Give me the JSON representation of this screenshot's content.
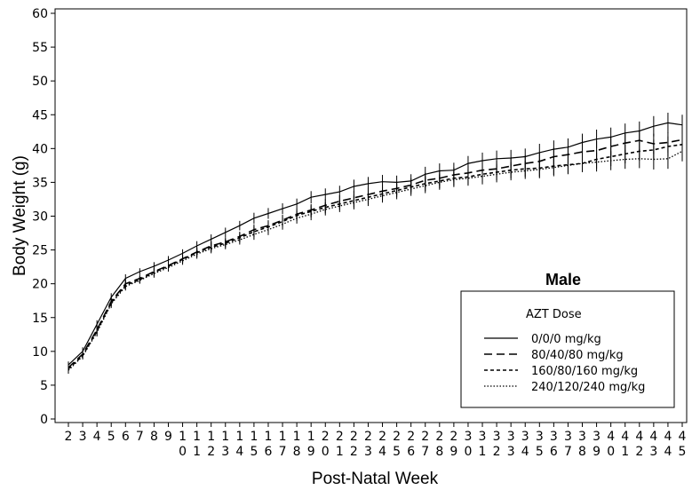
{
  "chart_data": {
    "type": "line",
    "xlabel": "Post-Natal Week",
    "ylabel": "Body Weight (g)",
    "xlim": [
      2,
      45
    ],
    "ylim": [
      0,
      60
    ],
    "yticks": [
      0,
      5,
      10,
      15,
      20,
      25,
      30,
      35,
      40,
      45,
      50,
      55,
      60
    ],
    "x": [
      2,
      3,
      4,
      5,
      6,
      7,
      8,
      9,
      10,
      11,
      12,
      13,
      14,
      15,
      16,
      17,
      18,
      19,
      20,
      21,
      22,
      23,
      24,
      25,
      26,
      27,
      28,
      29,
      30,
      31,
      32,
      33,
      34,
      35,
      36,
      37,
      38,
      39,
      40,
      41,
      42,
      43,
      44,
      45
    ],
    "x_tick_labels": [
      [
        "2"
      ],
      [
        "3"
      ],
      [
        "4"
      ],
      [
        "5"
      ],
      [
        "6"
      ],
      [
        "7"
      ],
      [
        "8"
      ],
      [
        "9"
      ],
      [
        "1",
        "0"
      ],
      [
        "1",
        "1"
      ],
      [
        "1",
        "2"
      ],
      [
        "1",
        "3"
      ],
      [
        "1",
        "4"
      ],
      [
        "1",
        "5"
      ],
      [
        "1",
        "6"
      ],
      [
        "1",
        "7"
      ],
      [
        "1",
        "8"
      ],
      [
        "1",
        "9"
      ],
      [
        "2",
        "0"
      ],
      [
        "2",
        "1"
      ],
      [
        "2",
        "2"
      ],
      [
        "2",
        "3"
      ],
      [
        "2",
        "4"
      ],
      [
        "2",
        "5"
      ],
      [
        "2",
        "6"
      ],
      [
        "2",
        "7"
      ],
      [
        "2",
        "8"
      ],
      [
        "2",
        "9"
      ],
      [
        "3",
        "0"
      ],
      [
        "3",
        "1"
      ],
      [
        "3",
        "2"
      ],
      [
        "3",
        "3"
      ],
      [
        "3",
        "4"
      ],
      [
        "3",
        "5"
      ],
      [
        "3",
        "6"
      ],
      [
        "3",
        "7"
      ],
      [
        "3",
        "8"
      ],
      [
        "3",
        "9"
      ],
      [
        "4",
        "0"
      ],
      [
        "4",
        "1"
      ],
      [
        "4",
        "2"
      ],
      [
        "4",
        "3"
      ],
      [
        "4",
        "4"
      ],
      [
        "4",
        "5"
      ]
    ],
    "series": [
      {
        "name": "0/0/0 mg/kg",
        "dash": "solid",
        "values": [
          8.0,
          10.0,
          14.0,
          18.0,
          20.8,
          21.8,
          22.6,
          23.5,
          24.5,
          25.6,
          26.6,
          27.6,
          28.6,
          29.7,
          30.4,
          31.1,
          31.8,
          32.8,
          33.2,
          33.6,
          34.4,
          34.8,
          35.1,
          35.0,
          35.2,
          36.2,
          36.7,
          36.8,
          37.8,
          38.2,
          38.5,
          38.6,
          38.8,
          39.4,
          39.9,
          40.2,
          40.9,
          41.4,
          41.7,
          42.3,
          42.6,
          43.3,
          43.8,
          43.5
        ],
        "errors": [
          0.5,
          0.6,
          0.6,
          0.6,
          0.6,
          0.5,
          0.6,
          0.6,
          0.6,
          0.7,
          0.7,
          0.7,
          0.7,
          0.8,
          0.8,
          0.8,
          0.8,
          0.9,
          0.9,
          0.9,
          1.0,
          1.0,
          1.0,
          1.0,
          1.0,
          1.1,
          1.1,
          1.1,
          1.1,
          1.2,
          1.2,
          1.2,
          1.2,
          1.3,
          1.3,
          1.3,
          1.3,
          1.4,
          1.4,
          1.4,
          1.4,
          1.5,
          1.5,
          1.5
        ]
      },
      {
        "name": "80/40/80 mg/kg",
        "dash": "long",
        "values": [
          7.6,
          9.6,
          13.2,
          17.4,
          20.0,
          20.8,
          21.8,
          22.7,
          23.7,
          24.7,
          25.6,
          26.2,
          27.0,
          28.0,
          28.6,
          29.4,
          30.3,
          30.9,
          31.6,
          32.2,
          32.7,
          33.2,
          33.7,
          34.1,
          34.6,
          35.3,
          35.6,
          36.1,
          36.4,
          36.8,
          37.0,
          37.4,
          37.8,
          38.1,
          38.8,
          39.1,
          39.5,
          39.7,
          40.3,
          40.8,
          41.2,
          40.7,
          40.9,
          41.3
        ],
        "errors": [
          0.5,
          0.5,
          0.6,
          0.6,
          0.6,
          0.5,
          0.6,
          0.6,
          0.6,
          0.7,
          0.7,
          0.7,
          0.7,
          0.8,
          0.8,
          0.8,
          0.8,
          0.9,
          0.9,
          0.9,
          1.0,
          1.0,
          1.0,
          1.0,
          1.0,
          1.1,
          1.1,
          1.1,
          1.1,
          1.2,
          1.2,
          1.2,
          1.2,
          1.3,
          1.3,
          1.3,
          1.3,
          1.4,
          1.4,
          1.4,
          1.4,
          1.5,
          1.5,
          1.5
        ]
      },
      {
        "name": "160/80/160 mg/kg",
        "dash": "short",
        "values": [
          7.4,
          9.4,
          13.0,
          17.2,
          19.8,
          20.6,
          21.7,
          22.6,
          23.6,
          24.6,
          25.4,
          26.0,
          26.8,
          27.7,
          28.4,
          29.2,
          30.1,
          30.7,
          31.3,
          31.8,
          32.3,
          32.8,
          33.3,
          33.8,
          34.3,
          34.8,
          35.2,
          35.6,
          35.8,
          36.2,
          36.5,
          36.8,
          37.0,
          37.1,
          37.4,
          37.6,
          37.8,
          38.4,
          38.8,
          39.2,
          39.6,
          39.8,
          40.3,
          40.6
        ],
        "errors": [
          0.5,
          0.5,
          0.6,
          0.6,
          0.6,
          0.5,
          0.6,
          0.6,
          0.6,
          0.7,
          0.7,
          0.7,
          0.7,
          0.8,
          0.8,
          0.8,
          0.8,
          0.9,
          0.9,
          0.9,
          1.0,
          1.0,
          1.0,
          1.0,
          1.0,
          1.1,
          1.1,
          1.1,
          1.1,
          1.2,
          1.2,
          1.2,
          1.2,
          1.3,
          1.3,
          1.3,
          1.3,
          1.4,
          1.4,
          1.4,
          1.4,
          1.5,
          1.5,
          1.5
        ]
      },
      {
        "name": "240/120/240 mg/kg",
        "dash": "dotted",
        "values": [
          7.2,
          9.3,
          12.8,
          17.0,
          19.6,
          20.5,
          21.5,
          22.4,
          23.4,
          24.4,
          25.2,
          25.8,
          26.5,
          27.3,
          28.0,
          28.8,
          29.7,
          30.3,
          31.0,
          31.5,
          32.0,
          32.5,
          33.0,
          33.5,
          34.0,
          34.5,
          35.0,
          35.4,
          35.6,
          35.9,
          36.2,
          36.5,
          36.7,
          36.9,
          37.2,
          37.5,
          37.8,
          38.0,
          38.2,
          38.4,
          38.5,
          38.4,
          38.5,
          39.6
        ],
        "errors": [
          0.5,
          0.5,
          0.6,
          0.6,
          0.6,
          0.5,
          0.6,
          0.6,
          0.6,
          0.7,
          0.7,
          0.7,
          0.7,
          0.8,
          0.8,
          0.8,
          0.8,
          0.9,
          0.9,
          0.9,
          1.0,
          1.0,
          1.0,
          1.0,
          1.0,
          1.1,
          1.1,
          1.1,
          1.1,
          1.2,
          1.2,
          1.2,
          1.2,
          1.3,
          1.3,
          1.3,
          1.3,
          1.4,
          1.4,
          1.4,
          1.4,
          1.5,
          1.5,
          1.5
        ]
      }
    ],
    "legend": {
      "heading": "Male",
      "title": "AZT Dose",
      "placement": "lower-right",
      "entries": [
        "0/0/0 mg/kg",
        "80/40/80 mg/kg",
        "160/80/160 mg/kg",
        "240/120/240 mg/kg"
      ]
    },
    "grid": false,
    "colors": {
      "line": "#000000",
      "background": "#ffffff"
    }
  }
}
